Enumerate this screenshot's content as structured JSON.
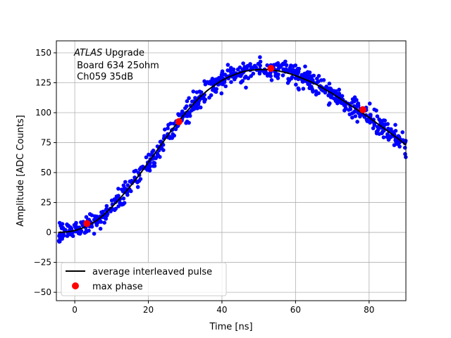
{
  "chart_data": {
    "type": "scatter",
    "title": "",
    "xlabel": "Time [ns]",
    "ylabel": "Amplitude [ADC Counts]",
    "xlim": [
      -5,
      90
    ],
    "ylim": [
      -57,
      160
    ],
    "xticks": [
      0,
      20,
      40,
      60,
      80
    ],
    "yticks": [
      -50,
      -25,
      0,
      25,
      50,
      75,
      100,
      125,
      150
    ],
    "grid": true,
    "legend_placement": "lower-left",
    "annotation": {
      "italic_part": "ATLAS",
      "line1_rest": " Upgrade",
      "line2": " Board 634 25ohm",
      "line3": " Ch059 35dB"
    },
    "series": [
      {
        "kind": "scatter-samples",
        "color": "#0000ff",
        "average_curve": {
          "x": [
            -4.5,
            -2,
            0,
            2,
            4,
            6,
            8,
            10,
            12,
            14,
            16,
            18,
            20,
            22,
            24,
            26,
            28,
            30,
            32,
            34,
            36,
            38,
            40,
            42,
            44,
            46,
            48,
            50,
            52,
            54,
            56,
            58,
            60,
            62,
            64,
            66,
            68,
            70,
            72,
            74,
            76,
            78,
            80,
            82,
            84,
            86,
            88,
            90
          ],
          "y": [
            0,
            0.5,
            1.5,
            3.5,
            6.5,
            10,
            15,
            21,
            27.5,
            34.5,
            42,
            50,
            58.5,
            67,
            75.5,
            84,
            92,
            99.5,
            106.5,
            113,
            118.5,
            123,
            127,
            130,
            132.5,
            134.5,
            135.5,
            136,
            136,
            135.5,
            134.5,
            133,
            131,
            128.5,
            126,
            123,
            119.5,
            116,
            112,
            108,
            104,
            100,
            96,
            91.5,
            87,
            82.5,
            78,
            73
          ]
        },
        "spread": 4.5,
        "points_per_ns": 8
      },
      {
        "name": "average interleaved pulse",
        "kind": "line",
        "color": "#000000",
        "x": [
          -4.5,
          -2,
          0,
          2,
          4,
          6,
          8,
          10,
          12,
          14,
          16,
          18,
          20,
          22,
          24,
          26,
          28,
          30,
          32,
          34,
          36,
          38,
          40,
          42,
          44,
          46,
          48,
          50,
          52,
          54,
          56,
          58,
          60,
          62,
          64,
          66,
          68,
          70,
          72,
          74,
          76,
          78,
          80,
          82,
          84,
          86,
          88,
          90
        ],
        "y": [
          0,
          0.5,
          1.5,
          3.5,
          6.5,
          10,
          15,
          21,
          27.5,
          34.5,
          42,
          50,
          58.5,
          67,
          75.5,
          84,
          92,
          99.5,
          106.5,
          113,
          118.5,
          123,
          127,
          130,
          132.5,
          134.5,
          135.5,
          136,
          136,
          135.5,
          134.5,
          133,
          131,
          128.5,
          126,
          123,
          119.5,
          116,
          112,
          108,
          104,
          100,
          96,
          91.5,
          87,
          82.5,
          78,
          73
        ]
      },
      {
        "name": "max phase",
        "kind": "markers",
        "color": "#ff0000",
        "x": [
          3.3,
          28.3,
          53.3,
          78.3
        ],
        "y": [
          7.5,
          92.5,
          137,
          102.5
        ]
      }
    ]
  }
}
